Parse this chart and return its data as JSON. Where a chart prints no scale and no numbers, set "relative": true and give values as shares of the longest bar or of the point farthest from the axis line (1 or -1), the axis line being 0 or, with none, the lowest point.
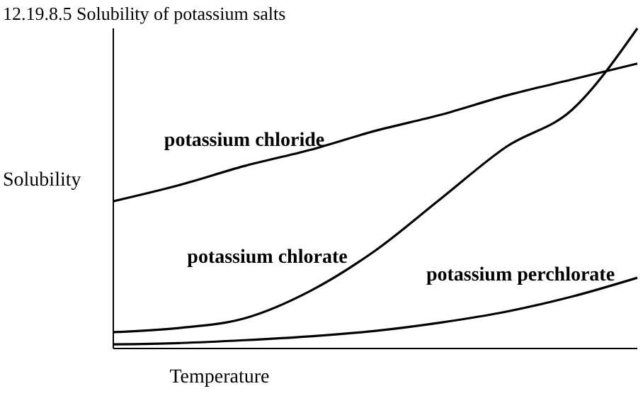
{
  "chart_data": {
    "type": "line",
    "title": "12.19.8.5 Solubility of potassium salts",
    "xlabel": "Temperature",
    "ylabel": "Solubility",
    "relative": true,
    "categories": [
      null,
      null,
      null,
      null,
      null,
      null,
      null,
      null,
      null
    ],
    "series": [
      {
        "name": "potassium chloride",
        "color": "#000000",
        "values": [
          0.46,
          0.51,
          0.57,
          0.62,
          0.68,
          0.73,
          0.79,
          0.84,
          0.89
        ]
      },
      {
        "name": "potassium chlorate",
        "color": "#000000",
        "values": [
          0.051,
          0.064,
          0.094,
          0.179,
          0.306,
          0.468,
          0.63,
          0.745,
          1
        ]
      },
      {
        "name": "potassium perchlorate",
        "color": "#000000",
        "values": [
          0.013,
          0.017,
          0.026,
          0.038,
          0.055,
          0.081,
          0.115,
          0.162,
          0.221
        ]
      }
    ],
    "grid": false,
    "legend": false,
    "marker": "none",
    "line_style": "solid"
  }
}
